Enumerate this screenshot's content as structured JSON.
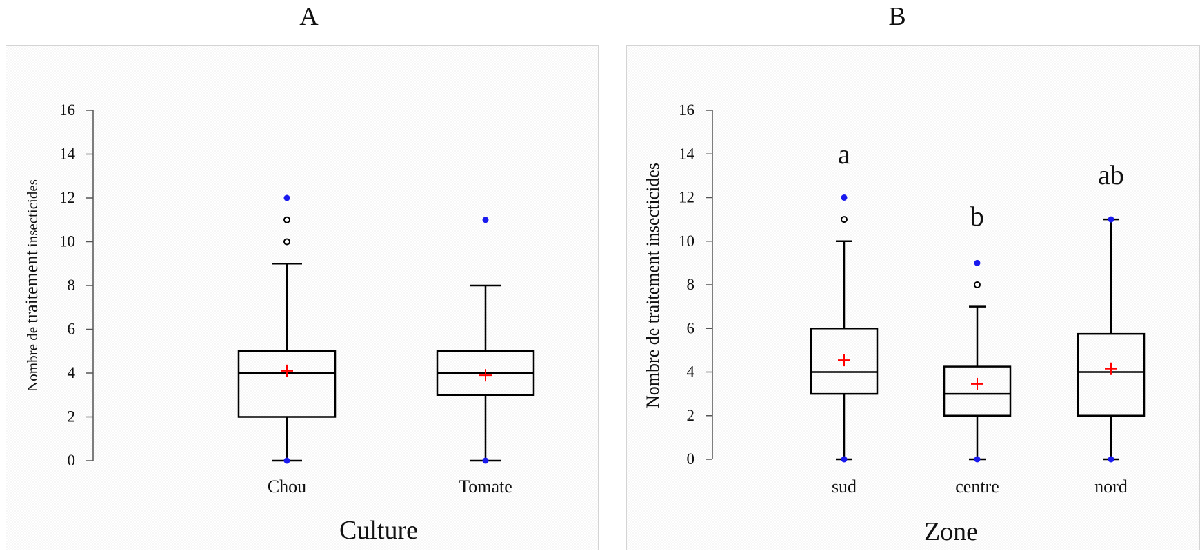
{
  "chart_data": [
    {
      "type": "box",
      "panel_label": "A",
      "xlabel": "Culture",
      "ylabel_small": "Nombre de ",
      "ylabel_big": "traitement",
      "ylabel_rest": " insecticides",
      "ylim": [
        0,
        16
      ],
      "yticks": [
        "0",
        "2",
        "4",
        "6",
        "8",
        "10",
        "12",
        "14",
        "16"
      ],
      "categories": [
        "Chou",
        "Tomate"
      ],
      "boxes": [
        {
          "category": "Chou",
          "min": 0,
          "q1": 2,
          "median": 4,
          "q3": 5,
          "whisker_high": 9,
          "mean": 4.1,
          "outliers": [
            10,
            11
          ],
          "extreme_points": [
            12,
            0
          ]
        },
        {
          "category": "Tomate",
          "min": 0,
          "q1": 3,
          "median": 4,
          "q3": 5,
          "whisker_high": 8,
          "mean": 3.9,
          "outliers": [],
          "extreme_points": [
            11,
            0
          ]
        }
      ],
      "significance_letters": []
    },
    {
      "type": "box",
      "panel_label": "B",
      "xlabel": "Zone",
      "ylabel_small": "Nombre de ",
      "ylabel_big": "traitement insecticides",
      "ylabel_rest": "",
      "ylim": [
        0,
        16
      ],
      "yticks": [
        "0",
        "2",
        "4",
        "6",
        "8",
        "10",
        "12",
        "14",
        "16"
      ],
      "categories": [
        "sud",
        "centre",
        "nord"
      ],
      "boxes": [
        {
          "category": "sud",
          "min": 0,
          "q1": 3,
          "median": 4,
          "q3": 6,
          "whisker_high": 10,
          "mean": 4.55,
          "outliers": [
            11
          ],
          "extreme_points": [
            12,
            0
          ]
        },
        {
          "category": "centre",
          "min": 0,
          "q1": 2,
          "median": 3,
          "q3": 4.25,
          "whisker_high": 7,
          "mean": 3.45,
          "outliers": [
            8
          ],
          "extreme_points": [
            9,
            0
          ]
        },
        {
          "category": "nord",
          "min": 0,
          "q1": 2,
          "median": 4,
          "q3": 5.75,
          "whisker_high": 11,
          "mean": 4.15,
          "outliers": [],
          "extreme_points": [
            11,
            0
          ]
        }
      ],
      "significance_letters": [
        "a",
        "b",
        "ab"
      ]
    }
  ],
  "colors": {
    "box_stroke": "#000000",
    "mean_marker": "#ff0000",
    "extreme_point": "#1a1aee",
    "outlier": "#000000"
  }
}
